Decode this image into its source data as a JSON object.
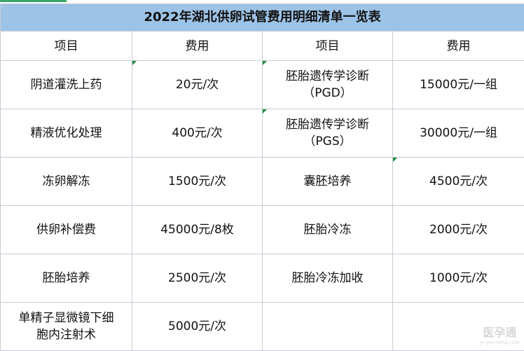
{
  "title": "2022年湖北供卵试管费用明细清单一览表",
  "headers": [
    "项目",
    "费用",
    "项目",
    "费用"
  ],
  "rows": [
    [
      "阴道灌洗上药",
      "20元/次",
      "胚胎遗传学诊断\n（PGD）",
      "15000元/一组"
    ],
    [
      "精液优化处理",
      "400元/次",
      "胚胎遗传学诊断\n（PGS）",
      "30000元/一组"
    ],
    [
      "冻卵解冻",
      "1500元/次",
      "囊胚培养",
      "4500元/次"
    ],
    [
      "供卵补偿费",
      "45000元/8枚",
      "胚胎冷冻",
      "2000元/次"
    ],
    [
      "胚胎培养",
      "2500元/次",
      "胚胎冷冻加收",
      "1000元/次"
    ],
    [
      "单精子显微镜下细\n胞内注射术",
      "5000元/次",
      "",
      ""
    ]
  ],
  "watermark": {
    "logo": "医孕通",
    "url": "yi-yun-tong.com"
  },
  "colors": {
    "title_bg": "#9dc3e6",
    "comment_marker": "#1e8a3a"
  }
}
